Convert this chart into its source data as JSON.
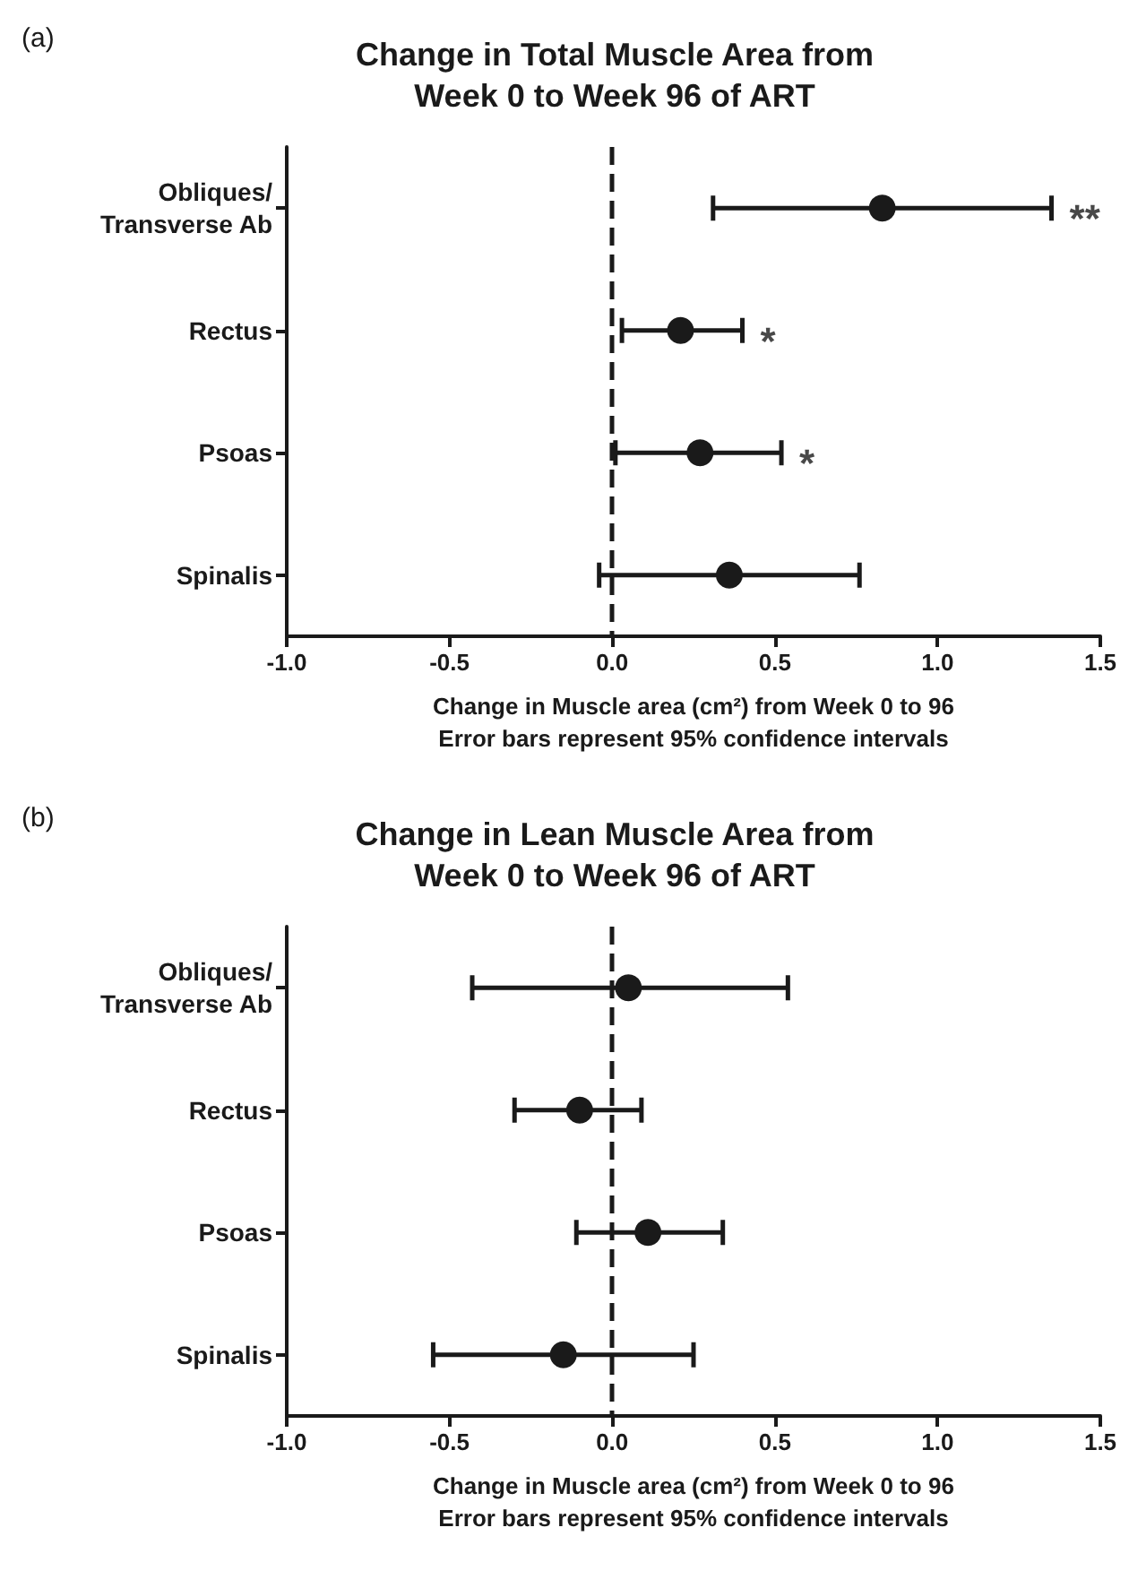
{
  "chart_data": [
    {
      "type": "scatter",
      "orientation": "horizontal",
      "title": "Change in Total Muscle Area from\nWeek 0 to Week 96 of ART",
      "xlabel": "Change in Muscle area (cm²) from Week 0 to 96\nError bars represent 95% confidence intervals",
      "categories": [
        "Obliques/\nTransverse Ab",
        "Rectus",
        "Psoas",
        "Spinalis"
      ],
      "color": "#1a1a1a",
      "values": [
        0.83,
        0.21,
        0.27,
        0.36
      ],
      "errors": [
        [
          0.31,
          1.35
        ],
        [
          0.03,
          0.4
        ],
        [
          0.01,
          0.52
        ],
        [
          -0.04,
          0.76
        ]
      ],
      "xlim": [
        -1.0,
        1.5
      ],
      "xticks": [
        {
          "value": -1,
          "label": "-1.0"
        },
        {
          "value": -0.5,
          "label": "-0.5"
        },
        {
          "value": 0,
          "label": "0.0"
        },
        {
          "value": 0.5,
          "label": "0.5"
        },
        {
          "value": 1,
          "label": "1.0"
        },
        {
          "value": 1.5,
          "label": "1.5"
        }
      ],
      "ref_lines": [
        {
          "axis": "x",
          "value": 0,
          "line_style": "dashed",
          "color": "#1a1a1a"
        }
      ],
      "annotations": [
        "(a)",
        {
          "text": "**",
          "x": 1.35,
          "y": "Obliques/\nTransverse Ab"
        },
        {
          "text": "*",
          "x": 0.4,
          "y": "Rectus"
        },
        {
          "text": "*",
          "x": 0.52,
          "y": "Psoas"
        }
      ],
      "marker": "circle",
      "grid": false
    },
    {
      "type": "scatter",
      "orientation": "horizontal",
      "title": "Change in Lean Muscle Area from\nWeek 0 to Week 96 of ART",
      "xlabel": "Change in Muscle area (cm²) from Week 0 to 96\nError bars represent 95% confidence intervals",
      "categories": [
        "Obliques/\nTransverse Ab",
        "Rectus",
        "Psoas",
        "Spinalis"
      ],
      "color": "#1a1a1a",
      "values": [
        0.05,
        -0.1,
        0.11,
        -0.15
      ],
      "errors": [
        [
          -0.43,
          0.54
        ],
        [
          -0.3,
          0.09
        ],
        [
          -0.11,
          0.34
        ],
        [
          -0.55,
          0.25
        ]
      ],
      "xlim": [
        -1.0,
        1.5
      ],
      "xticks": [
        {
          "value": -1,
          "label": "-1.0"
        },
        {
          "value": -0.5,
          "label": "-0.5"
        },
        {
          "value": 0,
          "label": "0.0"
        },
        {
          "value": 0.5,
          "label": "0.5"
        },
        {
          "value": 1,
          "label": "1.0"
        },
        {
          "value": 1.5,
          "label": "1.5"
        }
      ],
      "ref_lines": [
        {
          "axis": "x",
          "value": 0,
          "line_style": "dashed",
          "color": "#1a1a1a"
        }
      ],
      "annotations": [
        "(b)"
      ],
      "marker": "circle",
      "grid": false
    }
  ]
}
